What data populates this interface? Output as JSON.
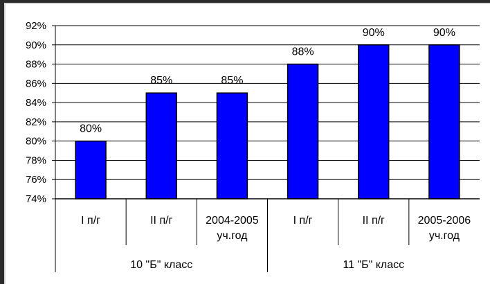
{
  "chart_data": {
    "type": "bar",
    "title": "",
    "xlabel": "",
    "ylabel": "",
    "ylim": [
      74,
      92
    ],
    "ytick_step": 2,
    "ytick_suffix": "%",
    "grid": true,
    "bar_color": "#0000FF",
    "bar_edge_color": "#000000",
    "categories": [
      {
        "lines": [
          "I п/г"
        ]
      },
      {
        "lines": [
          "II п/г"
        ]
      },
      {
        "lines": [
          "2004-2005",
          "уч.год"
        ]
      },
      {
        "lines": [
          "I п/г"
        ]
      },
      {
        "lines": [
          "II п/г"
        ]
      },
      {
        "lines": [
          "2005-2006",
          "уч.год"
        ]
      }
    ],
    "values": [
      80,
      85,
      85,
      88,
      90,
      90
    ],
    "data_labels": [
      "80%",
      "85%",
      "85%",
      "88%",
      "90%",
      "90%"
    ],
    "groups": [
      {
        "label": "10 \"Б\"  класс",
        "span": [
          0,
          2
        ]
      },
      {
        "label": "11 \"Б\"  класс",
        "span": [
          3,
          5
        ]
      }
    ]
  }
}
